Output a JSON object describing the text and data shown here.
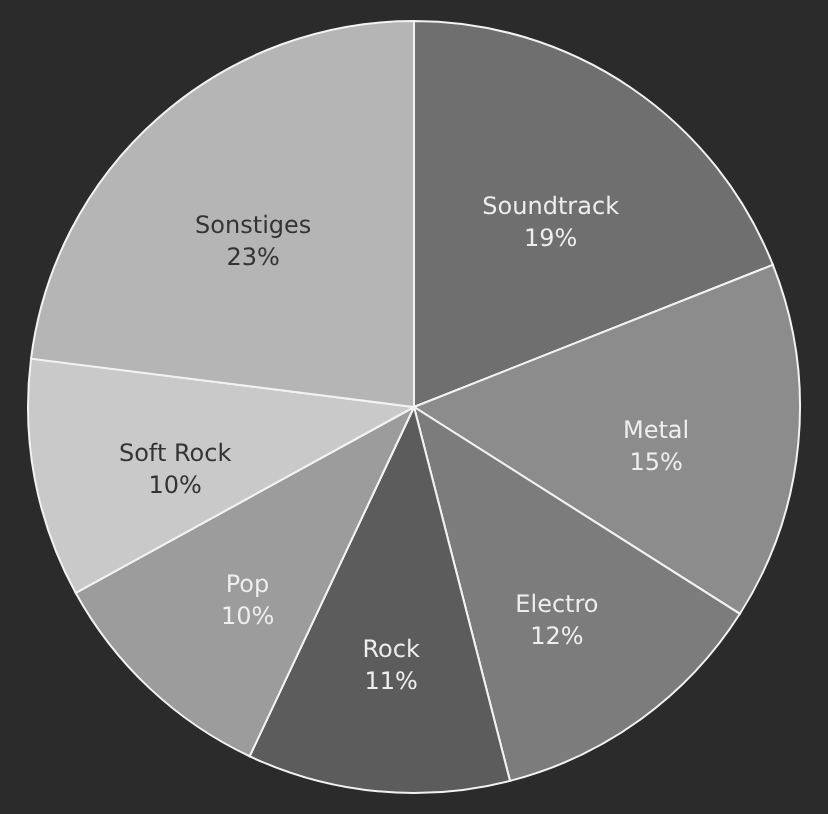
{
  "chart_data": {
    "type": "pie",
    "categories": [
      "Soundtrack",
      "Metal",
      "Electro",
      "Rock",
      "Pop",
      "Soft Rock",
      "Sonstiges"
    ],
    "values": [
      19,
      15,
      12,
      11,
      10,
      10,
      23
    ],
    "value_labels": [
      "19%",
      "15%",
      "12%",
      "11%",
      "10%",
      "10%",
      "23%"
    ],
    "colors": [
      "#6f6f6f",
      "#8c8c8c",
      "#7c7c7c",
      "#5c5c5c",
      "#9c9c9c",
      "#c9c9c9",
      "#b5b5b5"
    ]
  }
}
